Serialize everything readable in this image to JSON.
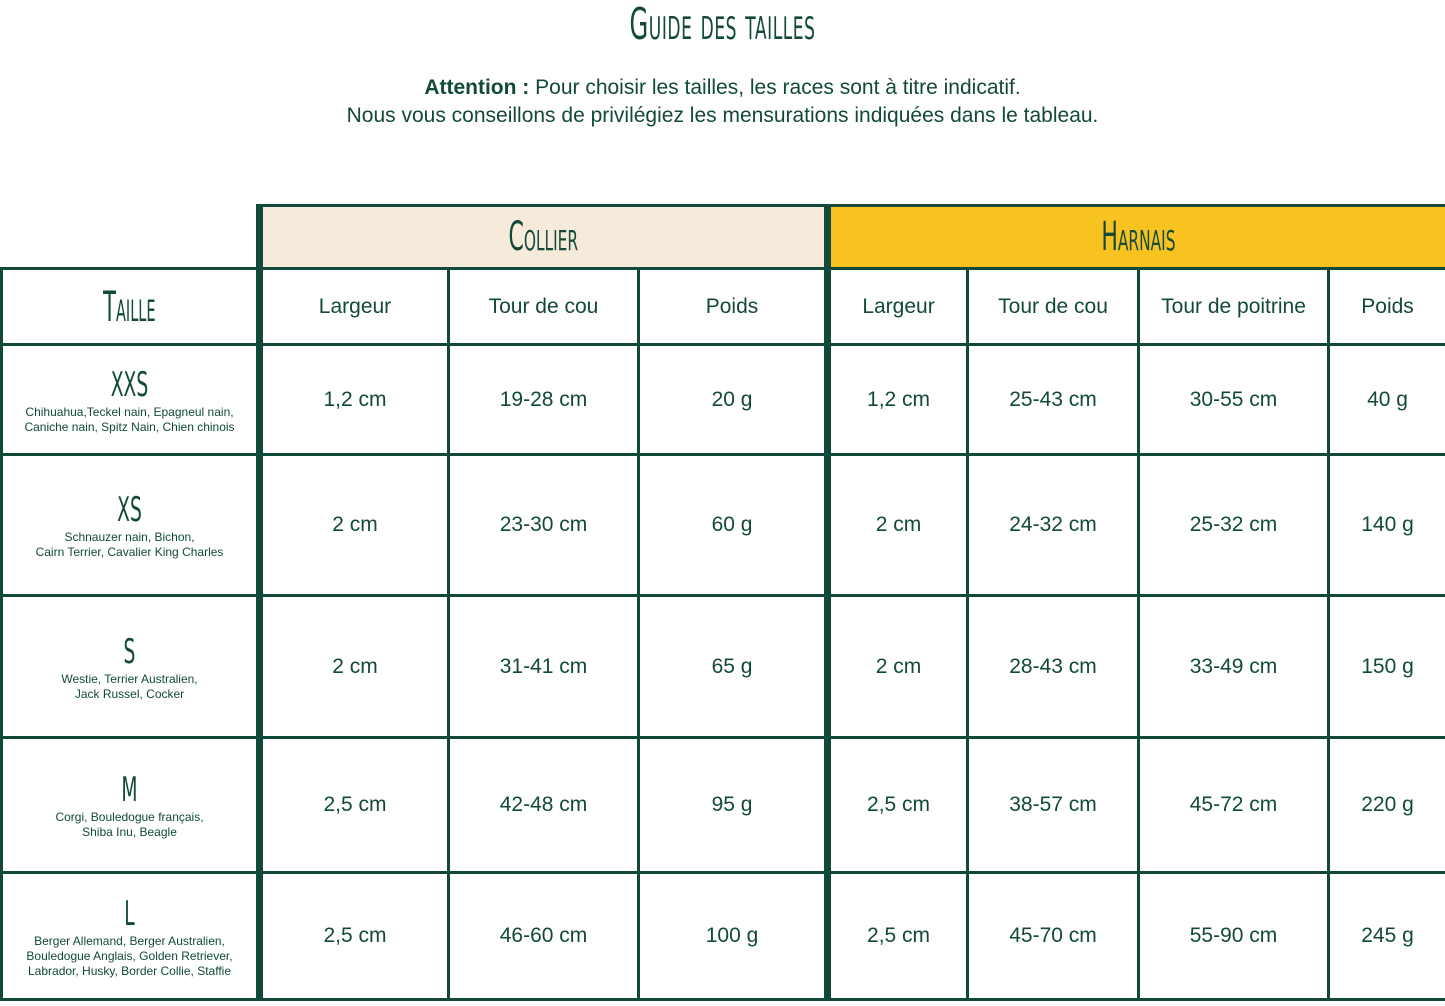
{
  "title": "Guide des tailles",
  "note": {
    "attention_label": "Attention :",
    "line1": " Pour choisir les tailles, les races sont à titre indicatif.",
    "line2": "Nous vous conseillons de privilégiez les mensurations indiquées dans le tableau."
  },
  "colors": {
    "primary": "#12493a",
    "collier_bg": "#f6eadb",
    "harnais_bg": "#f8c320"
  },
  "table": {
    "groups": {
      "collier": "Collier",
      "harnais": "Harnais"
    },
    "taille_header": "Taille",
    "collier_columns": [
      "Largeur",
      "Tour de cou",
      "Poids"
    ],
    "harnais_columns": [
      "Largeur",
      "Tour de cou",
      "Tour de poitrine",
      "Poids"
    ],
    "rows": [
      {
        "size": "XXS",
        "breeds": [
          "Chihuahua,Teckel nain, Epagneul nain,",
          "Caniche nain, Spitz Nain, Chien chinois"
        ],
        "collier": [
          "1,2 cm",
          "19-28 cm",
          "20 g"
        ],
        "harnais": [
          "1,2 cm",
          "25-43 cm",
          "30-55 cm",
          "40 g"
        ]
      },
      {
        "size": "XS",
        "breeds": [
          "Schnauzer nain, Bichon,",
          "Cairn Terrier, Cavalier King Charles"
        ],
        "collier": [
          "2 cm",
          "23-30 cm",
          "60 g"
        ],
        "harnais": [
          "2 cm",
          "24-32 cm",
          "25-32 cm",
          "140 g"
        ]
      },
      {
        "size": "S",
        "breeds": [
          "Westie, Terrier Australien,",
          "Jack Russel, Cocker"
        ],
        "collier": [
          "2 cm",
          "31-41 cm",
          "65 g"
        ],
        "harnais": [
          "2 cm",
          "28-43 cm",
          "33-49 cm",
          "150 g"
        ]
      },
      {
        "size": "M",
        "breeds": [
          "Corgi, Bouledogue français,",
          "Shiba Inu, Beagle"
        ],
        "collier": [
          "2,5 cm",
          "42-48 cm",
          "95 g"
        ],
        "harnais": [
          "2,5 cm",
          "38-57 cm",
          "45-72 cm",
          "220 g"
        ]
      },
      {
        "size": "L",
        "breeds": [
          "Berger Allemand, Berger Australien,",
          "Bouledogue Anglais, Golden Retriever,",
          "Labrador, Husky, Border Collie, Staffie"
        ],
        "collier": [
          "2,5 cm",
          "46-60 cm",
          "100 g"
        ],
        "harnais": [
          "2,5 cm",
          "45-70 cm",
          "55-90 cm",
          "245 g"
        ]
      }
    ]
  }
}
